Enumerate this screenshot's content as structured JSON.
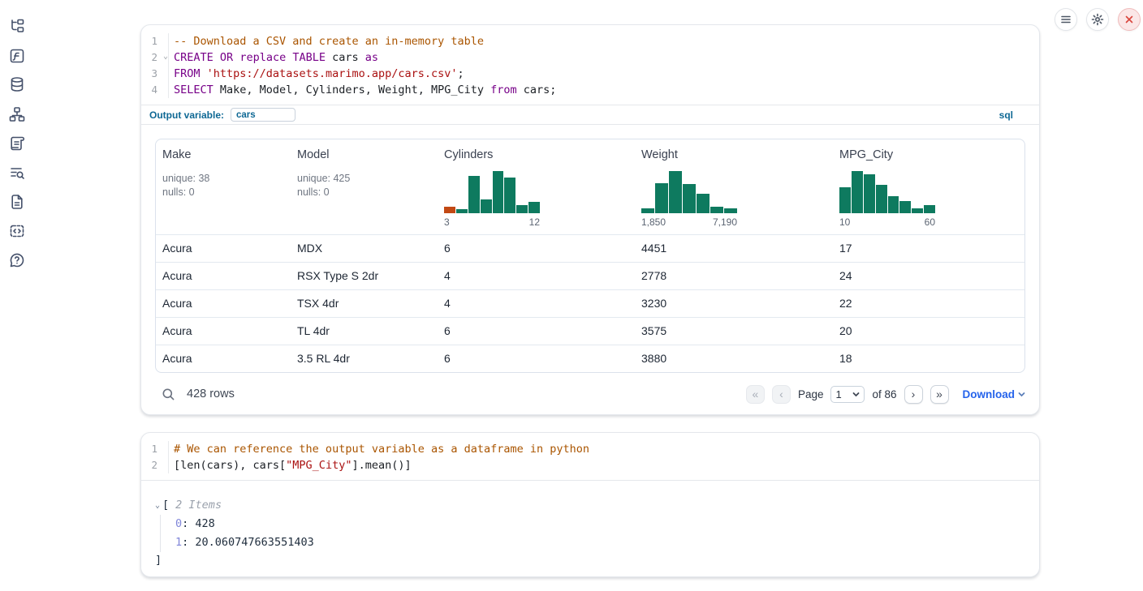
{
  "colors": {
    "accent_blue": "#0e6894",
    "link_blue": "#2563eb",
    "keyword": "#770088",
    "string": "#aa1111",
    "comment": "#aa5500",
    "hist_green": "#0e7a5f",
    "hist_orange": "#c24914"
  },
  "sidebar": {
    "icons": [
      "file-tree",
      "variables",
      "datasources",
      "dependency-graph",
      "scratchpad",
      "logs",
      "documentation",
      "snippets",
      "help"
    ]
  },
  "topbar": {
    "buttons": [
      "menu",
      "settings",
      "shutdown"
    ]
  },
  "sql_cell": {
    "lines": [
      {
        "no": "1",
        "fold": false,
        "tokens": [
          [
            "comment",
            "-- Download a CSV and create an in-memory table"
          ]
        ]
      },
      {
        "no": "2",
        "fold": true,
        "tokens": [
          [
            "keyword",
            "CREATE"
          ],
          [
            "plain",
            " "
          ],
          [
            "keyword",
            "OR"
          ],
          [
            "plain",
            " "
          ],
          [
            "keyword",
            "replace"
          ],
          [
            "plain",
            " "
          ],
          [
            "keyword",
            "TABLE"
          ],
          [
            "plain",
            " cars "
          ],
          [
            "keyword",
            "as"
          ]
        ]
      },
      {
        "no": "3",
        "fold": false,
        "tokens": [
          [
            "keyword",
            "FROM"
          ],
          [
            "plain",
            " "
          ],
          [
            "string",
            "'https://datasets.marimo.app/cars.csv'"
          ],
          [
            "plain",
            ";"
          ]
        ]
      },
      {
        "no": "4",
        "fold": false,
        "tokens": [
          [
            "keyword",
            "SELECT"
          ],
          [
            "plain",
            " Make, Model, Cylinders, Weight, MPG_City "
          ],
          [
            "keyword",
            "from"
          ],
          [
            "plain",
            " cars;"
          ]
        ]
      }
    ],
    "output_variable": {
      "label": "Output variable:",
      "value": "cars"
    },
    "language_badge": "sql",
    "table": {
      "columns": [
        {
          "name": "Make",
          "stats": [
            "unique: 38",
            "nulls: 0"
          ]
        },
        {
          "name": "Model",
          "stats": [
            "unique: 425",
            "nulls: 0"
          ]
        },
        {
          "name": "Cylinders",
          "histogram": {
            "min_label": "3",
            "max_label": "12",
            "bars": [
              0.16,
              0.09,
              0.88,
              0.33,
              1.0,
              0.84,
              0.2,
              0.27
            ],
            "bar_colors": [
              "orange",
              "green",
              "green",
              "green",
              "green",
              "green",
              "green",
              "green"
            ]
          }
        },
        {
          "name": "Weight",
          "histogram": {
            "min_label": "1,850",
            "max_label": "7,190",
            "bars": [
              0.12,
              0.72,
              1.0,
              0.7,
              0.47,
              0.16,
              0.12
            ]
          }
        },
        {
          "name": "MPG_City",
          "histogram": {
            "min_label": "10",
            "max_label": "60",
            "bars": [
              0.62,
              1.0,
              0.92,
              0.68,
              0.4,
              0.28,
              0.12,
              0.2
            ]
          }
        }
      ],
      "rows": [
        [
          "Acura",
          "MDX",
          "6",
          "4451",
          "17"
        ],
        [
          "Acura",
          "RSX Type S 2dr",
          "4",
          "2778",
          "24"
        ],
        [
          "Acura",
          "TSX 4dr",
          "4",
          "3230",
          "22"
        ],
        [
          "Acura",
          "TL 4dr",
          "6",
          "3575",
          "20"
        ],
        [
          "Acura",
          "3.5 RL 4dr",
          "6",
          "3880",
          "18"
        ]
      ],
      "footer": {
        "row_count": "428 rows",
        "page_label": "Page",
        "page_value": "1",
        "of_label": "of 86",
        "download_label": "Download"
      }
    }
  },
  "python_cell": {
    "lines": [
      {
        "no": "1",
        "fold": false,
        "tokens": [
          [
            "comment",
            "# We can reference the output variable as a dataframe in python"
          ]
        ]
      },
      {
        "no": "2",
        "fold": false,
        "tokens": [
          [
            "plain",
            "[len(cars), cars["
          ],
          [
            "string",
            "\"MPG_City\""
          ],
          [
            "plain",
            "].mean()]"
          ]
        ]
      }
    ],
    "output_tree": {
      "open_bracket": "[",
      "items_label": "2 Items",
      "entries": [
        {
          "key": "0",
          "value": "428"
        },
        {
          "key": "1",
          "value": "20.060747663551403"
        }
      ],
      "close_bracket": "]"
    }
  }
}
